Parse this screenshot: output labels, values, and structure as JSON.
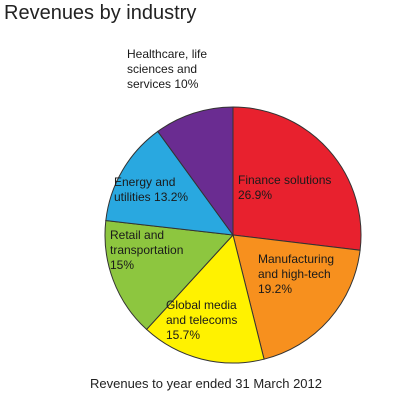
{
  "chart_data": {
    "type": "pie",
    "title": "Revenues by industry",
    "categories": [
      "Finance solutions",
      "Manufacturing and high-tech",
      "Global media and telecoms",
      "Retail and transportation",
      "Energy and utilities",
      "Healthcare, life sciences and services"
    ],
    "values": [
      26.9,
      19.2,
      15.7,
      15,
      13.2,
      10
    ],
    "value_labels": [
      "26.9%",
      "19.2%",
      "15.7%",
      "15%",
      "13.2%",
      "10%"
    ],
    "colors": [
      "#e8212e",
      "#f7901e",
      "#fff200",
      "#8dc63f",
      "#29a8e0",
      "#6a2c91"
    ],
    "caption": "Revenues to year ended 31 March 2012"
  }
}
